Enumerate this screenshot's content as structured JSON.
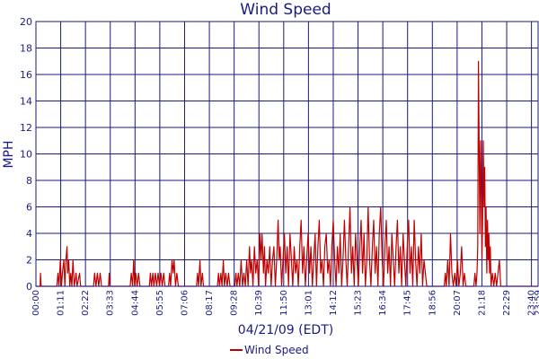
{
  "chart_data": {
    "type": "line",
    "title": "Wind Speed",
    "xlabel": "04/21/09 (EDT)",
    "ylabel": "MPH",
    "ylim": [
      0,
      20
    ],
    "yticks": [
      "0",
      "2",
      "4",
      "6",
      "8",
      "10",
      "12",
      "14",
      "16",
      "18",
      "20"
    ],
    "xlim": [
      "00:00",
      "23:59"
    ],
    "xticks": [
      "00:00",
      "01:11",
      "02:22",
      "03:33",
      "04:44",
      "05:55",
      "07:06",
      "08:17",
      "09:28",
      "10:39",
      "11:50",
      "13:01",
      "14:12",
      "15:23",
      "16:34",
      "17:45",
      "18:56",
      "20:07",
      "21:18",
      "22:29",
      "23:40",
      "23:59"
    ],
    "grid": true,
    "legend_position": "bottom-center",
    "colors": {
      "series": "#c00000",
      "grid": "#1a1a80",
      "text": "#1a1a80"
    },
    "series": [
      {
        "name": "Wind Speed",
        "points": [
          [
            "00:00",
            0
          ],
          [
            "00:12",
            0
          ],
          [
            "00:13",
            1
          ],
          [
            "00:15",
            0
          ],
          [
            "01:00",
            0
          ],
          [
            "01:03",
            1
          ],
          [
            "01:06",
            0
          ],
          [
            "01:10",
            2
          ],
          [
            "01:13",
            0
          ],
          [
            "01:16",
            1
          ],
          [
            "01:20",
            2
          ],
          [
            "01:23",
            0
          ],
          [
            "01:26",
            2
          ],
          [
            "01:29",
            3
          ],
          [
            "01:31",
            1
          ],
          [
            "01:34",
            2
          ],
          [
            "01:37",
            0
          ],
          [
            "01:40",
            1
          ],
          [
            "01:43",
            0
          ],
          [
            "01:46",
            2
          ],
          [
            "01:50",
            0
          ],
          [
            "01:55",
            1
          ],
          [
            "01:58",
            0
          ],
          [
            "02:05",
            1
          ],
          [
            "02:08",
            0
          ],
          [
            "02:45",
            0
          ],
          [
            "02:48",
            1
          ],
          [
            "02:52",
            0
          ],
          [
            "02:56",
            1
          ],
          [
            "03:00",
            0
          ],
          [
            "03:04",
            1
          ],
          [
            "03:08",
            0
          ],
          [
            "03:28",
            0
          ],
          [
            "03:30",
            1
          ],
          [
            "03:32",
            0
          ],
          [
            "04:30",
            0
          ],
          [
            "04:33",
            1
          ],
          [
            "04:37",
            0
          ],
          [
            "04:40",
            2
          ],
          [
            "04:43",
            0
          ],
          [
            "04:46",
            1
          ],
          [
            "04:50",
            0
          ],
          [
            "04:54",
            1
          ],
          [
            "04:58",
            0
          ],
          [
            "05:25",
            0
          ],
          [
            "05:28",
            1
          ],
          [
            "05:31",
            0
          ],
          [
            "05:35",
            1
          ],
          [
            "05:38",
            0
          ],
          [
            "05:42",
            1
          ],
          [
            "05:46",
            0
          ],
          [
            "05:50",
            1
          ],
          [
            "05:54",
            0
          ],
          [
            "05:58",
            1
          ],
          [
            "06:02",
            0
          ],
          [
            "06:06",
            1
          ],
          [
            "06:10",
            0
          ],
          [
            "06:20",
            0
          ],
          [
            "06:23",
            1
          ],
          [
            "06:26",
            0
          ],
          [
            "06:30",
            2
          ],
          [
            "06:33",
            1
          ],
          [
            "06:36",
            2
          ],
          [
            "06:40",
            0
          ],
          [
            "06:44",
            1
          ],
          [
            "06:48",
            0
          ],
          [
            "07:40",
            0
          ],
          [
            "07:43",
            1
          ],
          [
            "07:46",
            0
          ],
          [
            "07:50",
            2
          ],
          [
            "07:53",
            0
          ],
          [
            "07:57",
            1
          ],
          [
            "08:00",
            0
          ],
          [
            "08:40",
            0
          ],
          [
            "08:43",
            1
          ],
          [
            "08:46",
            0
          ],
          [
            "08:50",
            1
          ],
          [
            "08:53",
            0
          ],
          [
            "08:57",
            2
          ],
          [
            "09:00",
            0
          ],
          [
            "09:04",
            1
          ],
          [
            "09:08",
            0
          ],
          [
            "09:12",
            1
          ],
          [
            "09:16",
            0
          ],
          [
            "09:30",
            0
          ],
          [
            "09:33",
            1
          ],
          [
            "09:36",
            0
          ],
          [
            "09:40",
            1
          ],
          [
            "09:44",
            0
          ],
          [
            "09:48",
            2
          ],
          [
            "09:52",
            0
          ],
          [
            "09:56",
            1
          ],
          [
            "10:00",
            0
          ],
          [
            "10:04",
            2
          ],
          [
            "10:08",
            0
          ],
          [
            "10:12",
            3
          ],
          [
            "10:15",
            1
          ],
          [
            "10:18",
            2
          ],
          [
            "10:22",
            0
          ],
          [
            "10:26",
            3
          ],
          [
            "10:30",
            1
          ],
          [
            "10:34",
            2
          ],
          [
            "10:38",
            0
          ],
          [
            "10:42",
            4
          ],
          [
            "10:45",
            2
          ],
          [
            "10:48",
            4
          ],
          [
            "10:52",
            1
          ],
          [
            "10:55",
            3
          ],
          [
            "10:58",
            0
          ],
          [
            "11:02",
            2
          ],
          [
            "11:06",
            1
          ],
          [
            "11:10",
            3
          ],
          [
            "11:14",
            0
          ],
          [
            "11:18",
            2
          ],
          [
            "11:22",
            3
          ],
          [
            "11:26",
            0
          ],
          [
            "11:30",
            2
          ],
          [
            "11:34",
            5
          ],
          [
            "11:37",
            2
          ],
          [
            "11:40",
            3
          ],
          [
            "11:44",
            0
          ],
          [
            "11:48",
            2
          ],
          [
            "11:52",
            4
          ],
          [
            "11:56",
            1
          ],
          [
            "12:00",
            3
          ],
          [
            "12:04",
            0
          ],
          [
            "12:08",
            4
          ],
          [
            "12:12",
            2
          ],
          [
            "12:16",
            0
          ],
          [
            "12:20",
            3
          ],
          [
            "12:24",
            1
          ],
          [
            "12:28",
            2
          ],
          [
            "12:32",
            0
          ],
          [
            "12:36",
            3
          ],
          [
            "12:40",
            5
          ],
          [
            "12:44",
            1
          ],
          [
            "12:48",
            3
          ],
          [
            "12:52",
            0
          ],
          [
            "12:56",
            2
          ],
          [
            "13:00",
            4
          ],
          [
            "13:04",
            1
          ],
          [
            "13:08",
            3
          ],
          [
            "13:12",
            0
          ],
          [
            "13:16",
            2
          ],
          [
            "13:20",
            4
          ],
          [
            "13:24",
            0
          ],
          [
            "13:28",
            3
          ],
          [
            "13:32",
            5
          ],
          [
            "13:36",
            1
          ],
          [
            "13:40",
            2
          ],
          [
            "13:44",
            0
          ],
          [
            "13:48",
            3
          ],
          [
            "13:52",
            4
          ],
          [
            "13:56",
            1
          ],
          [
            "14:00",
            2
          ],
          [
            "14:04",
            0
          ],
          [
            "14:08",
            3
          ],
          [
            "14:12",
            5
          ],
          [
            "14:16",
            2
          ],
          [
            "14:20",
            0
          ],
          [
            "14:24",
            3
          ],
          [
            "14:28",
            1
          ],
          [
            "14:32",
            4
          ],
          [
            "14:36",
            0
          ],
          [
            "14:40",
            2
          ],
          [
            "14:44",
            5
          ],
          [
            "14:48",
            2
          ],
          [
            "14:52",
            0
          ],
          [
            "14:56",
            3
          ],
          [
            "15:00",
            6
          ],
          [
            "15:04",
            1
          ],
          [
            "15:08",
            3
          ],
          [
            "15:12",
            0
          ],
          [
            "15:16",
            4
          ],
          [
            "15:20",
            2
          ],
          [
            "15:24",
            0
          ],
          [
            "15:28",
            3
          ],
          [
            "15:32",
            5
          ],
          [
            "15:36",
            1
          ],
          [
            "15:40",
            4
          ],
          [
            "15:44",
            0
          ],
          [
            "15:48",
            2
          ],
          [
            "15:52",
            6
          ],
          [
            "15:56",
            2
          ],
          [
            "16:00",
            0
          ],
          [
            "16:04",
            3
          ],
          [
            "16:08",
            5
          ],
          [
            "16:12",
            1
          ],
          [
            "16:16",
            3
          ],
          [
            "16:20",
            0
          ],
          [
            "16:24",
            4
          ],
          [
            "16:28",
            6
          ],
          [
            "16:32",
            2
          ],
          [
            "16:36",
            0
          ],
          [
            "16:40",
            3
          ],
          [
            "16:44",
            5
          ],
          [
            "16:48",
            1
          ],
          [
            "16:52",
            3
          ],
          [
            "16:56",
            0
          ],
          [
            "17:00",
            4
          ],
          [
            "17:04",
            2
          ],
          [
            "17:08",
            0
          ],
          [
            "17:12",
            3
          ],
          [
            "17:16",
            5
          ],
          [
            "17:20",
            1
          ],
          [
            "17:24",
            3
          ],
          [
            "17:28",
            0
          ],
          [
            "17:32",
            4
          ],
          [
            "17:36",
            2
          ],
          [
            "17:40",
            0
          ],
          [
            "17:44",
            3
          ],
          [
            "17:48",
            5
          ],
          [
            "17:52",
            1
          ],
          [
            "17:56",
            3
          ],
          [
            "18:00",
            0
          ],
          [
            "18:04",
            5
          ],
          [
            "18:08",
            2
          ],
          [
            "18:12",
            0
          ],
          [
            "18:16",
            3
          ],
          [
            "18:20",
            1
          ],
          [
            "18:24",
            4
          ],
          [
            "18:28",
            0
          ],
          [
            "18:32",
            2
          ],
          [
            "18:36",
            1
          ],
          [
            "18:40",
            0
          ],
          [
            "19:30",
            0
          ],
          [
            "19:33",
            1
          ],
          [
            "19:36",
            0
          ],
          [
            "19:40",
            2
          ],
          [
            "19:44",
            0
          ],
          [
            "19:48",
            4
          ],
          [
            "19:52",
            1
          ],
          [
            "19:56",
            0
          ],
          [
            "20:00",
            1
          ],
          [
            "20:04",
            0
          ],
          [
            "20:08",
            2
          ],
          [
            "20:12",
            0
          ],
          [
            "20:16",
            1
          ],
          [
            "20:20",
            3
          ],
          [
            "20:24",
            0
          ],
          [
            "20:28",
            1
          ],
          [
            "20:32",
            0
          ],
          [
            "20:55",
            0
          ],
          [
            "20:58",
            1
          ],
          [
            "21:01",
            0
          ],
          [
            "21:04",
            1
          ],
          [
            "21:06",
            3
          ],
          [
            "21:08",
            17
          ],
          [
            "21:10",
            11
          ],
          [
            "21:12",
            4
          ],
          [
            "21:14",
            11
          ],
          [
            "21:16",
            7
          ],
          [
            "21:18",
            2
          ],
          [
            "21:20",
            5
          ],
          [
            "21:22",
            11
          ],
          [
            "21:24",
            6
          ],
          [
            "21:26",
            9
          ],
          [
            "21:28",
            3
          ],
          [
            "21:30",
            6
          ],
          [
            "21:32",
            1
          ],
          [
            "21:34",
            5
          ],
          [
            "21:36",
            2
          ],
          [
            "21:38",
            4
          ],
          [
            "21:40",
            1
          ],
          [
            "21:42",
            3
          ],
          [
            "21:44",
            0
          ],
          [
            "21:48",
            1
          ],
          [
            "21:52",
            0
          ],
          [
            "21:56",
            1
          ],
          [
            "22:00",
            0
          ],
          [
            "22:04",
            1
          ],
          [
            "22:08",
            2
          ],
          [
            "22:12",
            0
          ],
          [
            "22:20",
            0
          ],
          [
            "23:59",
            0
          ]
        ]
      }
    ]
  }
}
